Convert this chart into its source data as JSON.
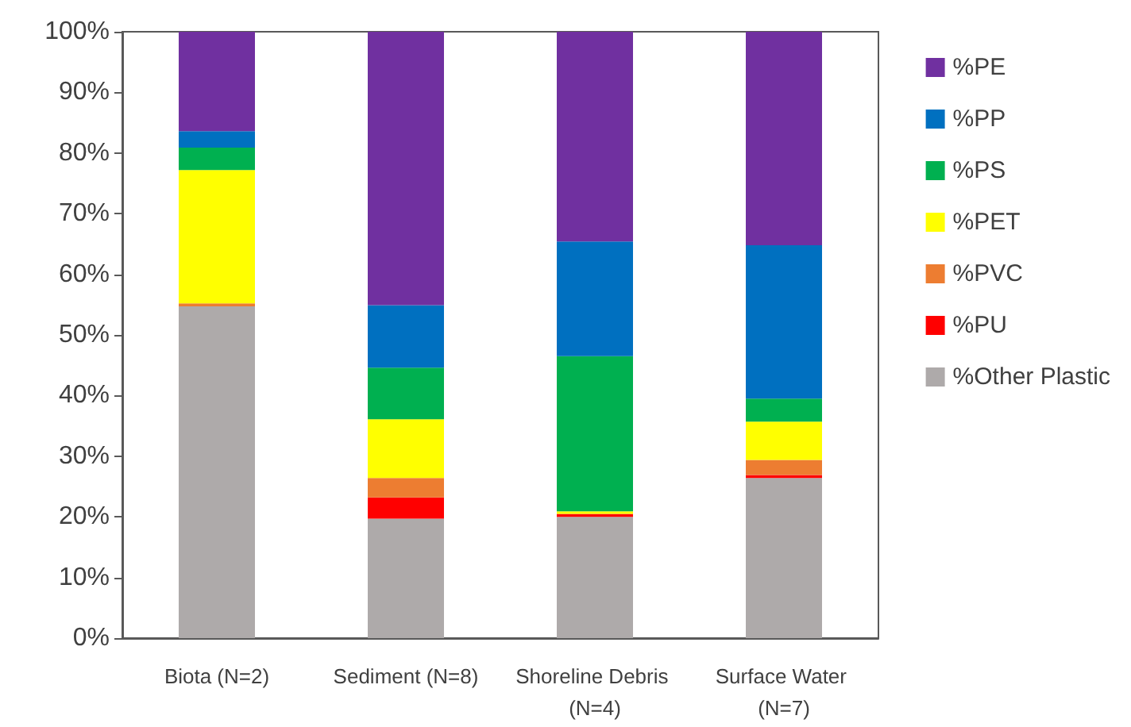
{
  "chart_data": {
    "type": "bar",
    "stacked": true,
    "categories": [
      "Biota (N=2)",
      "Sediment (N=8)",
      "Shoreline Debris (N=4)",
      "Surface Water (N=7)"
    ],
    "series": [
      {
        "name": "%Other Plastic",
        "color": "#aeaaaa",
        "values": [
          54.7,
          19.7,
          20.0,
          26.4
        ]
      },
      {
        "name": "%PU",
        "color": "#ff0000",
        "values": [
          0,
          3.5,
          0.5,
          0.5
        ]
      },
      {
        "name": "%PVC",
        "color": "#ed7d31",
        "values": [
          0.5,
          3.2,
          0,
          2.5
        ]
      },
      {
        "name": "%PET",
        "color": "#ffff00",
        "values": [
          22,
          9.7,
          0.4,
          6.3
        ]
      },
      {
        "name": "%PS",
        "color": "#00b050",
        "values": [
          3.7,
          8.5,
          25.6,
          3.8
        ]
      },
      {
        "name": "%PP",
        "color": "#0070c0",
        "values": [
          2.7,
          10.3,
          18.9,
          25.3
        ]
      },
      {
        "name": "%PE",
        "color": "#7030a0",
        "values": [
          16.4,
          45.1,
          34.6,
          35.2
        ]
      }
    ],
    "ylim": [
      0,
      100
    ],
    "yticks": [
      {
        "value": 0,
        "label": "0%"
      },
      {
        "value": 10,
        "label": "10%"
      },
      {
        "value": 20,
        "label": "20%"
      },
      {
        "value": 30,
        "label": "30%"
      },
      {
        "value": 40,
        "label": "40%"
      },
      {
        "value": 50,
        "label": "50%"
      },
      {
        "value": 60,
        "label": "60%"
      },
      {
        "value": 70,
        "label": "70%"
      },
      {
        "value": 80,
        "label": "80%"
      },
      {
        "value": 90,
        "label": "90%"
      },
      {
        "value": 100,
        "label": "100%"
      }
    ],
    "grid": false,
    "legend": "right"
  }
}
